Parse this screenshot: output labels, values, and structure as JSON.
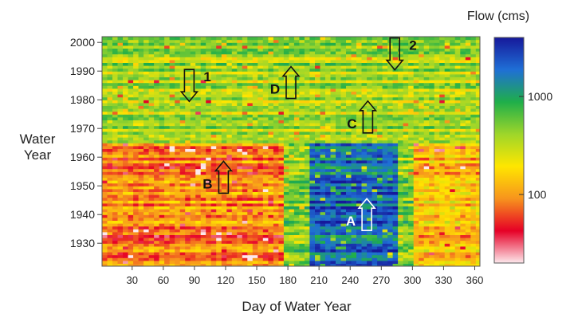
{
  "chart_data": {
    "type": "heatmap",
    "title": "",
    "xlabel": "Day of Water Year",
    "ylabel": "Water Year",
    "xlim": [
      1,
      365
    ],
    "ylim": [
      1922,
      2002
    ],
    "x_ticks": [
      30,
      60,
      90,
      120,
      150,
      180,
      210,
      240,
      270,
      300,
      330,
      360
    ],
    "y_ticks": [
      1930,
      1940,
      1950,
      1960,
      1970,
      1980,
      1990,
      2000
    ],
    "colorbar": {
      "title": "Flow (cms)",
      "scale": "log",
      "range": [
        20,
        4000
      ],
      "ticks": [
        100,
        1000
      ],
      "colors": [
        "#fde8ec",
        "#e60026",
        "#f7941d",
        "#ffe600",
        "#9ed62a",
        "#1fae4a",
        "#1f6fd6",
        "#16189a"
      ]
    },
    "regions": [
      {
        "years": [
          1922,
          1964
        ],
        "days": [
          1,
          175
        ],
        "flow_cms": 90,
        "description_color": "orange"
      },
      {
        "years": [
          1922,
          1964
        ],
        "days": [
          200,
          285
        ],
        "flow_cms": 2000,
        "description_color": "blue"
      },
      {
        "years": [
          1922,
          1964
        ],
        "days": [
          300,
          365
        ],
        "flow_cms": 150,
        "description_color": "orange-yellow"
      },
      {
        "years": [
          1965,
          2001
        ],
        "days": [
          1,
          365
        ],
        "flow_cms": 400,
        "description_color": "green-yellow"
      }
    ],
    "annotations": [
      {
        "label": "A",
        "day": 256,
        "year": 1940,
        "direction": "up",
        "color": "#ffffff"
      },
      {
        "label": "B",
        "day": 118,
        "year": 1953,
        "direction": "up",
        "color": "#111111"
      },
      {
        "label": "C",
        "day": 257,
        "year": 1974,
        "direction": "up",
        "color": "#111111"
      },
      {
        "label": "D",
        "day": 183,
        "year": 1986,
        "direction": "up",
        "color": "#111111"
      },
      {
        "label": "1",
        "day": 85,
        "year": 1985,
        "direction": "down",
        "color": "#111111"
      },
      {
        "label": "2",
        "day": 283,
        "year": 1996,
        "direction": "down",
        "color": "#111111"
      }
    ]
  }
}
